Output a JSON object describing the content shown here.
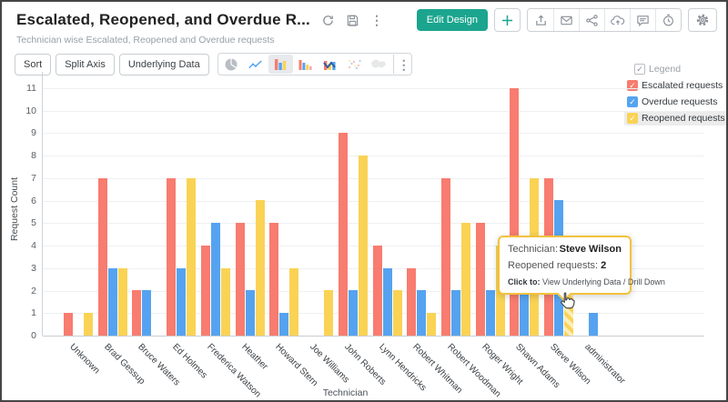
{
  "header": {
    "title": "Escalated, Reopened, and Overdue R...",
    "subtitle": "Technician wise Escalated, Reopened and Overdue requests",
    "edit_design_label": "Edit Design"
  },
  "toolbar": {
    "sort_label": "Sort",
    "split_axis_label": "Split Axis",
    "underlying_data_label": "Underlying Data"
  },
  "icons": {
    "refresh-icon": "circular-arrow",
    "save-icon": "floppy-disk",
    "kebab-menu-icon": "⋮",
    "add-icon": "+",
    "export-icon": "box-up-arrow",
    "mail-icon": "envelope",
    "share-icon": "share-nodes",
    "cloud-upload-icon": "cloud-up-arrow",
    "comment-icon": "speech-bubble",
    "alarm-icon": "clock",
    "gear-icon": "gear",
    "pie-chart-icon": "pie",
    "line-chart-icon": "zigzag-line",
    "bar-chart-icon": "three-bars",
    "bar-chart-alt-icon": "four-bars",
    "combo-chart-icon": "bars-with-line",
    "scatter-chart-icon": "dots",
    "map-chart-icon": "world-map",
    "legend-checkbox-icon": "check",
    "hand-cursor-icon": "pointing-hand"
  },
  "legend": {
    "title": "Legend",
    "items": [
      {
        "label": "Escalated requests",
        "color": "#f87c6f",
        "highlighted": false
      },
      {
        "label": "Overdue requests",
        "color": "#55a3f0",
        "highlighted": false
      },
      {
        "label": "Reopened requests",
        "color": "#fad355",
        "highlighted": true
      }
    ]
  },
  "tooltip": {
    "row1_label": "Technician:",
    "row1_value": "Steve Wilson",
    "row2_label": "Reopened requests:",
    "row2_value": "2",
    "row3_label": "Click to:",
    "row3_value": "View Underlying Data / Drill Down"
  },
  "chart_data": {
    "type": "bar",
    "title": "",
    "xlabel": "Technician",
    "ylabel": "Request Count",
    "ylim": [
      0,
      11
    ],
    "grid": "horizontal",
    "legend_position": "top-right",
    "categories": [
      "Unknown",
      "Brad Gessup",
      "Bruce Waters",
      "Ed Holmes",
      "Frederica Watson",
      "Heather",
      "Howard Stern",
      "Joe Williams",
      "John Roberts",
      "Lynn Hendricks",
      "Robert Whitman",
      "Robert Woodman",
      "Roger Wright",
      "Shawn Adams",
      "Steve Wilson",
      "administrator"
    ],
    "series": [
      {
        "name": "Escalated requests",
        "color": "#f87c6f",
        "values": [
          1,
          7,
          2,
          7,
          4,
          5,
          5,
          null,
          9,
          4,
          3,
          7,
          5,
          11,
          7,
          null
        ]
      },
      {
        "name": "Overdue requests",
        "color": "#55a3f0",
        "values": [
          null,
          3,
          2,
          3,
          5,
          2,
          1,
          null,
          2,
          3,
          2,
          2,
          2,
          2,
          6,
          1
        ]
      },
      {
        "name": "Reopened requests",
        "color": "#fad355",
        "values": [
          1,
          3,
          null,
          7,
          3,
          6,
          3,
          2,
          8,
          2,
          1,
          5,
          4,
          7,
          2,
          null
        ]
      }
    ],
    "hovered": {
      "series_index": 2,
      "category_index": 14,
      "value": 2
    }
  }
}
